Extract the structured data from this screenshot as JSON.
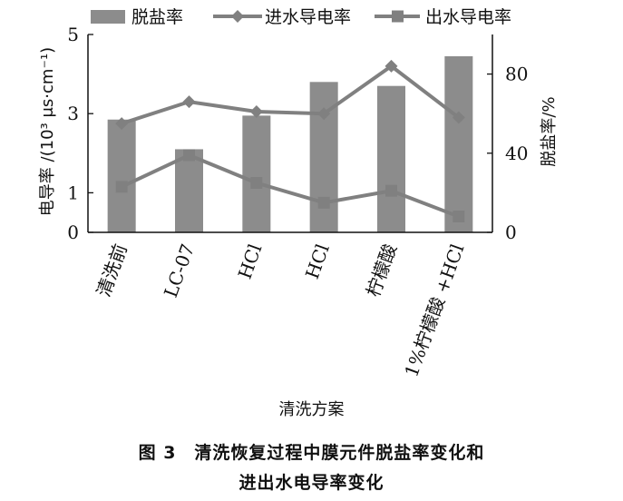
{
  "chart_data": {
    "type": "bar+line",
    "categories": [
      "清洗前",
      "LC-07",
      "HCl",
      "HCl",
      "柠檬酸",
      "1%柠檬酸 +HCl"
    ],
    "bars": {
      "name": "脱盐率",
      "axis": "right",
      "values": [
        57,
        42,
        59,
        76,
        74,
        89
      ],
      "color": "#8c8c8c"
    },
    "lines": [
      {
        "name": "进水导电率",
        "axis": "left",
        "marker": "diamond",
        "values": [
          2.75,
          3.3,
          3.05,
          3.0,
          4.2,
          2.9
        ],
        "color": "#808080"
      },
      {
        "name": "出水导电率",
        "axis": "left",
        "marker": "square",
        "values": [
          1.15,
          1.95,
          1.25,
          0.75,
          1.05,
          0.4
        ],
        "color": "#808080"
      }
    ],
    "left_axis": {
      "label": "电导率 /(10³ μs·cm⁻¹)",
      "range": [
        0,
        5
      ],
      "ticks": [
        0,
        1,
        3,
        5
      ]
    },
    "right_axis": {
      "label": "脱盐率/%",
      "range": [
        0,
        100
      ],
      "ticks": [
        0,
        40,
        80
      ]
    },
    "xlabel": "清洗方案",
    "legend_position": "top",
    "grid": false
  },
  "caption": {
    "line1": "图 3　清洗恢复过程中膜元件脱盐率变化和",
    "line2": "进出水电导率变化"
  }
}
